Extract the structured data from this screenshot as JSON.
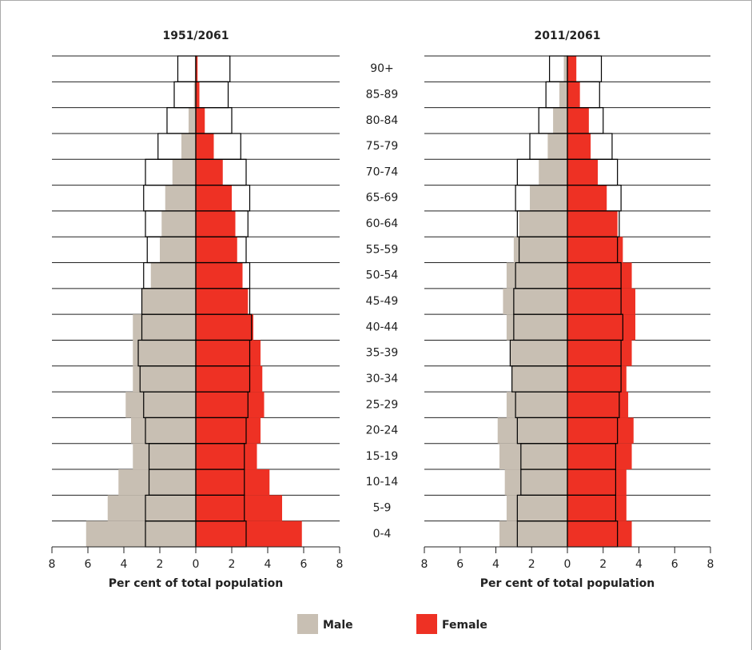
{
  "categories": [
    "0-4",
    "5-9",
    "10-14",
    "15-19",
    "20-24",
    "25-29",
    "30-34",
    "35-39",
    "40-44",
    "45-49",
    "50-54",
    "55-59",
    "60-64",
    "65-69",
    "70-74",
    "75-79",
    "80-84",
    "85-89",
    "90+"
  ],
  "legend": [
    {
      "name": "Male",
      "color": "#c8bfb3"
    },
    {
      "name": "Female",
      "color": "#ee3124"
    }
  ],
  "chart_data": [
    {
      "type": "bar",
      "title": "1951/2061",
      "xlabel": "Per cent of total population",
      "xlim": [
        -8,
        8
      ],
      "xticks": [
        {
          "value": -8,
          "label": "8"
        },
        {
          "value": -6,
          "label": "6"
        },
        {
          "value": -4,
          "label": "4"
        },
        {
          "value": -2,
          "label": "2"
        },
        0,
        2,
        4,
        6,
        8
      ],
      "series": [
        {
          "color": "#c8bfb3",
          "side": "left",
          "values": [
            6.1,
            4.9,
            4.3,
            3.5,
            3.6,
            3.9,
            3.5,
            3.5,
            3.5,
            3.0,
            2.5,
            2.0,
            1.9,
            1.7,
            1.3,
            0.8,
            0.4,
            0.1,
            0.05
          ]
        },
        {
          "color": "#ee3124",
          "side": "right",
          "values": [
            5.9,
            4.8,
            4.1,
            3.4,
            3.6,
            3.8,
            3.7,
            3.6,
            3.2,
            2.9,
            2.6,
            2.3,
            2.2,
            2.0,
            1.5,
            1.0,
            0.5,
            0.2,
            0.1
          ]
        },
        {
          "color": "#000000",
          "side": "left",
          "outline": true,
          "values": [
            2.8,
            2.8,
            2.6,
            2.6,
            2.8,
            2.9,
            3.1,
            3.2,
            3.0,
            3.0,
            2.9,
            2.7,
            2.8,
            2.9,
            2.8,
            2.1,
            1.6,
            1.2,
            1.0
          ]
        },
        {
          "color": "#000000",
          "side": "right",
          "outline": true,
          "values": [
            2.8,
            2.7,
            2.7,
            2.7,
            2.8,
            2.9,
            3.0,
            3.0,
            3.1,
            3.0,
            3.0,
            2.8,
            2.9,
            3.0,
            2.8,
            2.5,
            2.0,
            1.8,
            1.9
          ]
        }
      ]
    },
    {
      "type": "bar",
      "title": "2011/2061",
      "xlabel": "Per cent of total population",
      "xlim": [
        -8,
        8
      ],
      "xticks": [
        {
          "value": -8,
          "label": "8"
        },
        {
          "value": -6,
          "label": "6"
        },
        {
          "value": -4,
          "label": "4"
        },
        {
          "value": -2,
          "label": "2"
        },
        0,
        2,
        4,
        6,
        8
      ],
      "series": [
        {
          "color": "#c8bfb3",
          "side": "left",
          "values": [
            3.8,
            3.4,
            3.5,
            3.8,
            3.9,
            3.4,
            3.1,
            3.2,
            3.4,
            3.6,
            3.4,
            3.0,
            2.7,
            2.1,
            1.6,
            1.1,
            0.8,
            0.45,
            0.2
          ]
        },
        {
          "color": "#ee3124",
          "side": "right",
          "values": [
            3.6,
            3.3,
            3.3,
            3.6,
            3.7,
            3.4,
            3.3,
            3.6,
            3.8,
            3.8,
            3.6,
            3.1,
            2.8,
            2.2,
            1.7,
            1.3,
            1.2,
            0.7,
            0.5
          ]
        },
        {
          "color": "#000000",
          "side": "left",
          "outline": true,
          "values": [
            2.8,
            2.8,
            2.6,
            2.6,
            2.8,
            2.9,
            3.1,
            3.2,
            3.0,
            3.0,
            2.9,
            2.7,
            2.8,
            2.9,
            2.8,
            2.1,
            1.6,
            1.2,
            1.0
          ]
        },
        {
          "color": "#000000",
          "side": "right",
          "outline": true,
          "values": [
            2.8,
            2.7,
            2.7,
            2.7,
            2.8,
            2.9,
            3.0,
            3.0,
            3.1,
            3.0,
            3.0,
            2.8,
            2.9,
            3.0,
            2.8,
            2.5,
            2.0,
            1.8,
            1.9
          ]
        }
      ]
    }
  ]
}
